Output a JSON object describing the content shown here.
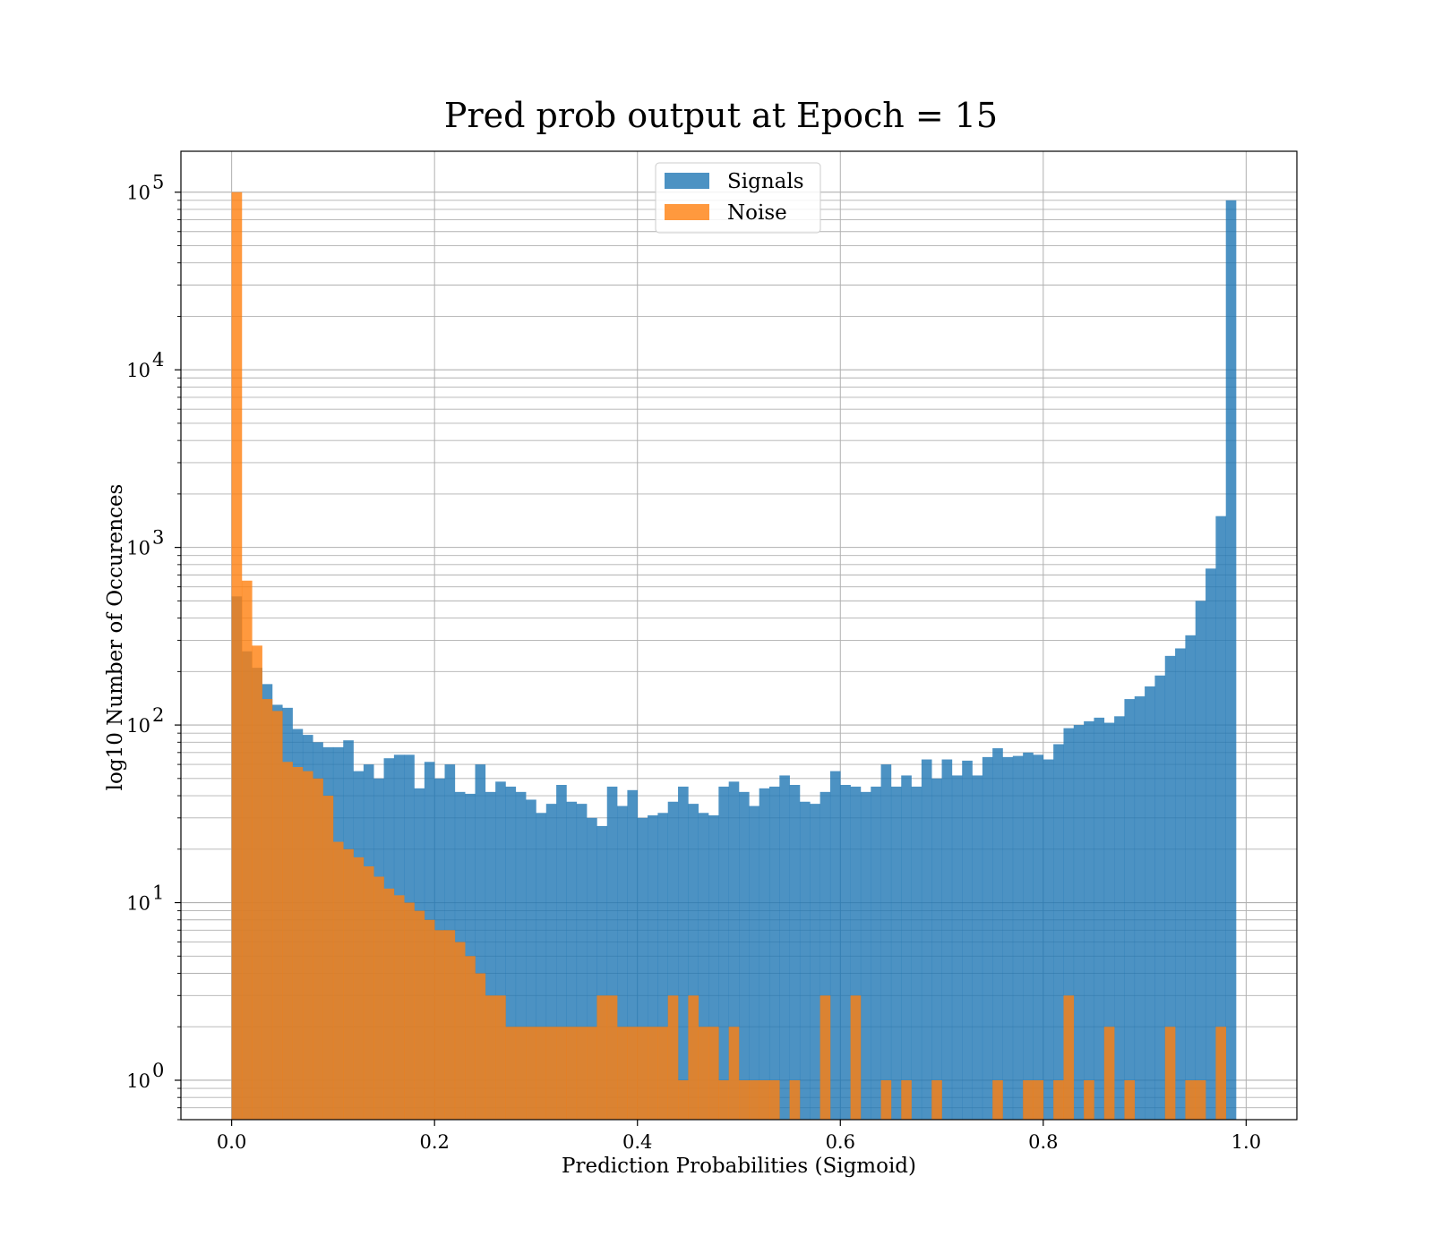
{
  "chart_data": {
    "type": "bar",
    "subtype": "histogram-overlay",
    "title": "Pred prob output at Epoch = 15",
    "xlabel": "Prediction Probabilities (Sigmoid)",
    "ylabel": "log10 Number of Occurences",
    "yscale": "log",
    "xlim": [
      -0.05,
      1.05
    ],
    "ylim": [
      0.6,
      170000
    ],
    "x_ticks": [
      "0.0",
      "0.2",
      "0.4",
      "0.6",
      "0.8",
      "1.0"
    ],
    "y_ticks": [
      {
        "base": "10",
        "exp": "0"
      },
      {
        "base": "10",
        "exp": "1"
      },
      {
        "base": "10",
        "exp": "2"
      },
      {
        "base": "10",
        "exp": "3"
      },
      {
        "base": "10",
        "exp": "4"
      },
      {
        "base": "10",
        "exp": "5"
      }
    ],
    "grid": true,
    "legend_position": "top-center",
    "bin_range": [
      0,
      1
    ],
    "bin_count": 100,
    "series": [
      {
        "name": "Signals",
        "color": "#1f77b4",
        "values": [
          530,
          260,
          210,
          170,
          130,
          125,
          95,
          88,
          80,
          75,
          75,
          82,
          55,
          60,
          50,
          65,
          68,
          68,
          44,
          62,
          50,
          60,
          42,
          41,
          60,
          42,
          48,
          45,
          42,
          38,
          32,
          36,
          46,
          37,
          36,
          30,
          27,
          45,
          35,
          43,
          30,
          31,
          32,
          37,
          45,
          36,
          32,
          31,
          45,
          48,
          42,
          35,
          44,
          45,
          52,
          46,
          37,
          36,
          42,
          55,
          46,
          45,
          42,
          45,
          60,
          45,
          52,
          45,
          64,
          50,
          64,
          52,
          63,
          52,
          66,
          74,
          66,
          67,
          70,
          68,
          64,
          78,
          96,
          100,
          105,
          110,
          103,
          112,
          140,
          145,
          165,
          190,
          245,
          270,
          320,
          500,
          760,
          1500,
          90000,
          0
        ]
      },
      {
        "name": "Noise",
        "color": "#ff7f0e",
        "values": [
          100000,
          650,
          280,
          140,
          120,
          62,
          58,
          55,
          50,
          40,
          22,
          20,
          18,
          16,
          14,
          12,
          11,
          10,
          9,
          8,
          7,
          7,
          6,
          5,
          4,
          3,
          3,
          2,
          2,
          2,
          2,
          2,
          2,
          2,
          2,
          2,
          3,
          3,
          2,
          2,
          2,
          2,
          2,
          3,
          1,
          3,
          2,
          2,
          1,
          2,
          1,
          1,
          1,
          1,
          0,
          1,
          0,
          0,
          3,
          0,
          0,
          3,
          0,
          0,
          1,
          0,
          1,
          0,
          0,
          1,
          0,
          0,
          0,
          0,
          0,
          1,
          0,
          0,
          1,
          1,
          0,
          1,
          3,
          0,
          1,
          0,
          2,
          0,
          1,
          0,
          0,
          0,
          2,
          0,
          1,
          1,
          0,
          2,
          0,
          0
        ]
      }
    ]
  }
}
